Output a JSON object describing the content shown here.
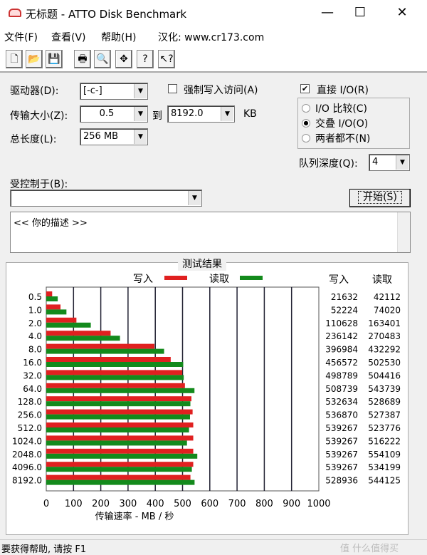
{
  "window": {
    "title": "无标题 - ATTO Disk Benchmark",
    "minimize": "—",
    "maximize": "☐",
    "close": "✕"
  },
  "menu": [
    "文件(F)",
    "查看(V)",
    "帮助(H)",
    "汉化: www.cr173.com"
  ],
  "toolbar": [
    {
      "icon": "new-file-icon",
      "glyph": "🗋"
    },
    {
      "icon": "open-folder-icon",
      "glyph": "📂"
    },
    {
      "icon": "save-icon",
      "glyph": "💾"
    },
    {
      "icon": "print-icon",
      "glyph": "🖶"
    },
    {
      "icon": "print-preview-icon",
      "glyph": "🔍"
    },
    {
      "icon": "move-icon",
      "glyph": "✥"
    },
    {
      "icon": "help-icon",
      "glyph": "?"
    },
    {
      "icon": "context-help-icon",
      "glyph": "↖?"
    }
  ],
  "controls": {
    "drive_label": "驱动器(D):",
    "drive_value": "[-c-]",
    "force_write_label": "强制写入访问(A)",
    "force_write_checked": false,
    "direct_io_label": "直接 I/O(R)",
    "direct_io_checked": true,
    "transfer_label": "传输大小(Z):",
    "transfer_from": "0.5",
    "to_label": "到",
    "transfer_to": "8192.0",
    "unit": "KB",
    "length_label": "总长度(L):",
    "length_value": "256 MB",
    "radios": [
      {
        "label": "I/O 比较(C)",
        "checked": false
      },
      {
        "label": "交叠 I/O(O)",
        "checked": true
      },
      {
        "label": "两者都不(N)",
        "checked": false
      }
    ],
    "queue_label": "队列深度(Q):",
    "queue_value": "4",
    "controlled_label": "受控制于(B):",
    "controlled_value": "",
    "start_button": "开始(S)",
    "description": "<< 你的描述 >>"
  },
  "chart_data": {
    "type": "bar",
    "orientation": "horizontal",
    "title": "测试结果",
    "legend": [
      {
        "name": "写入",
        "color": "#e02020"
      },
      {
        "name": "读取",
        "color": "#138a1c"
      }
    ],
    "legend_placement": "top",
    "categories": [
      "0.5",
      "1.0",
      "2.0",
      "4.0",
      "8.0",
      "16.0",
      "32.0",
      "64.0",
      "128.0",
      "256.0",
      "512.0",
      "1024.0",
      "2048.0",
      "4096.0",
      "8192.0"
    ],
    "series": [
      {
        "name": "写入",
        "values": [
          21632,
          52224,
          110628,
          236142,
          396984,
          456572,
          498789,
          508739,
          532634,
          536870,
          539267,
          539267,
          539267,
          539267,
          528936
        ]
      },
      {
        "name": "读取",
        "values": [
          42112,
          74020,
          163401,
          270483,
          432292,
          502530,
          504416,
          543739,
          528689,
          527387,
          523776,
          516222,
          554109,
          534199,
          544125
        ]
      }
    ],
    "table_headers": [
      "写入",
      "读取"
    ],
    "xlabel": "传输速率 - MB / 秒",
    "xlim": [
      0,
      1000
    ],
    "xticks": [
      "0",
      "100",
      "200",
      "300",
      "400",
      "500",
      "600",
      "700",
      "800",
      "900",
      "1000"
    ],
    "grid": true
  },
  "status": "要获得帮助, 请按 F1",
  "watermark": "值 什么值得买"
}
